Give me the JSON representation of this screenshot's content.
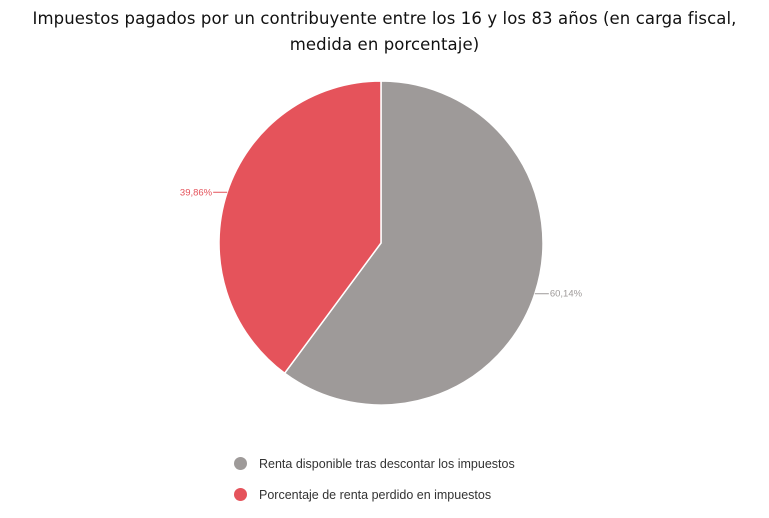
{
  "chart_data": {
    "type": "pie",
    "title": "Impuestos pagados por un contribuyente entre los 16 y los 83 años (en carga fiscal, medida en porcentaje)",
    "slices": [
      {
        "label": "Renta disponible tras descontar los impuestos",
        "value": 60.14,
        "value_label": "60,14%",
        "color": "#9e9a99"
      },
      {
        "label": "Porcentaje de renta perdido en impuestos",
        "value": 39.86,
        "value_label": "39,86%",
        "color": "#e5535b"
      }
    ],
    "legend_position": "bottom"
  }
}
